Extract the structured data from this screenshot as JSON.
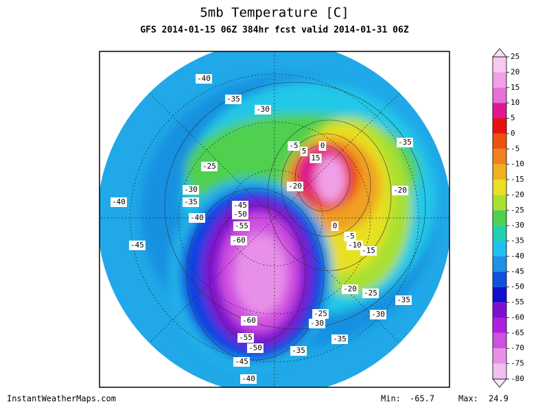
{
  "header": {
    "title": "5mb Temperature [C]",
    "subtitle": "GFS 2014-01-15 06Z 384hr fcst valid 2014-01-31 06Z"
  },
  "colorbar": {
    "ticks": [
      25,
      20,
      15,
      10,
      5,
      0,
      -5,
      -10,
      -15,
      -20,
      -25,
      -30,
      -35,
      -40,
      -45,
      -50,
      -55,
      -60,
      -65,
      -70,
      -75,
      -80
    ],
    "colors": [
      "#f8c8f0",
      "#f0a0e8",
      "#e870d8",
      "#e01890",
      "#e81010",
      "#f05010",
      "#f08020",
      "#f0b020",
      "#e8e020",
      "#a8e030",
      "#50d050",
      "#20d0b0",
      "#20c0f0",
      "#2090e8",
      "#1050e0",
      "#1010d0",
      "#8010d0",
      "#b020e0",
      "#d050e0",
      "#e890e8",
      "#f0c0f0"
    ],
    "over_color": "#fde0f8",
    "under_color": "#f8e8f8"
  },
  "contour_labels": [
    -40,
    -35,
    -30,
    -35,
    -5,
    5,
    0,
    15,
    -25,
    -20,
    -20,
    -30,
    -35,
    -40,
    -40,
    -45,
    -50,
    -55,
    -60,
    0,
    -5,
    -10,
    -15,
    -45,
    -20,
    -25,
    -35,
    -25,
    -30,
    -30,
    -60,
    -55,
    -50,
    -35,
    -35,
    -45,
    -40
  ],
  "footer": {
    "site": "InstantWeatherMaps.com",
    "min_label": "Min:",
    "min": -65.7,
    "max_label": "Max:",
    "max": 24.9
  }
}
